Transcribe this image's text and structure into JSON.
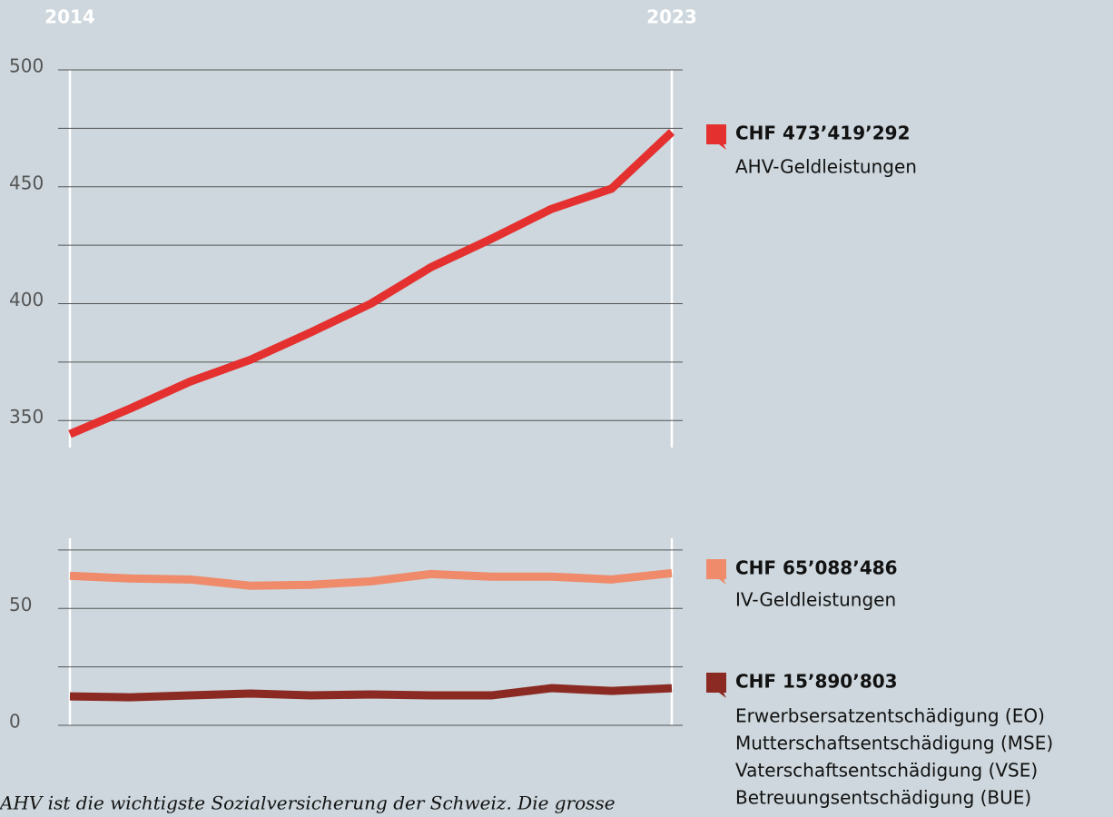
{
  "chart_data": {
    "type": "line",
    "categories": [
      "2014",
      null,
      null,
      null,
      null,
      null,
      null,
      null,
      null,
      null,
      "2023"
    ],
    "caption": "AHV ist die wichtigste Sozialversicherung der Schweiz. Die grosse",
    "panels": [
      {
        "ylim": [
          340,
          500
        ],
        "yticks": [
          350,
          400,
          450,
          500
        ],
        "minor_yticks": [
          375,
          425,
          475
        ],
        "series": [
          {
            "names": [
              "AHV-Geldleistungen"
            ],
            "color": "#e4302f",
            "values": [
              344.2,
              355.1,
              366.7,
              376,
              387.7,
              400,
              415.6,
              427.7,
              440.5,
              449.2,
              473.419292
            ],
            "value_labels": [
              null,
              null,
              null,
              null,
              null,
              null,
              null,
              null,
              null,
              null,
              "CHF 473’419’292"
            ]
          }
        ]
      },
      {
        "ylim": [
          0,
          80
        ],
        "yticks": [
          0,
          50
        ],
        "minor_yticks": [
          25,
          75
        ],
        "series": [
          {
            "names": [
              "IV-Geldleistungen"
            ],
            "color": "#ef8a6a",
            "values": [
              64,
              62.8,
              62.4,
              59.7,
              60.1,
              61.6,
              64.7,
              63.6,
              63.6,
              62.4,
              65.088486
            ],
            "value_labels": [
              null,
              null,
              null,
              null,
              null,
              null,
              null,
              null,
              null,
              null,
              "CHF 65’088’486"
            ]
          },
          {
            "names": [
              "Erwerbsersatzentschädigung (EO)",
              "Mutterschaftsentschädigung (MSE)",
              "Vaterschaftsentschädigung (VSE)",
              "Betreuungsentschädigung (BUE)"
            ],
            "color": "#8b2a23",
            "values": [
              12.4,
              12,
              12.8,
              13.6,
              12.8,
              13.2,
              12.8,
              12.8,
              15.9,
              14.7,
              15.890803
            ],
            "value_labels": [
              null,
              null,
              null,
              null,
              null,
              null,
              null,
              null,
              null,
              null,
              "CHF 15’890’803"
            ]
          }
        ]
      }
    ]
  }
}
